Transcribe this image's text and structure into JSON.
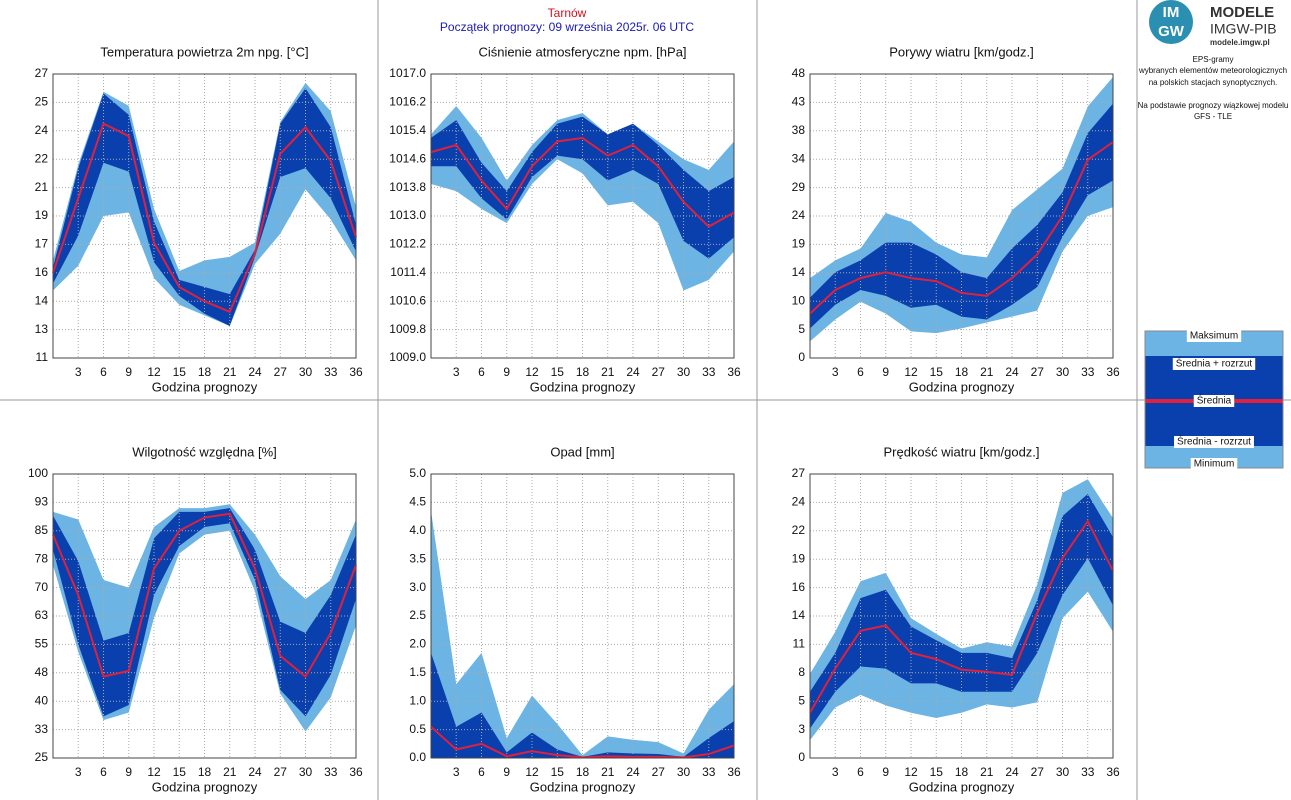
{
  "header": {
    "title": "Tarnów",
    "subtitle": "Początek prognozy: 09 września 2025r. 06 UTC"
  },
  "sidebar": {
    "logo_top": "IM",
    "logo_bottom": "GW",
    "brand": "MODELE",
    "org": "IMGW-PIB",
    "url": "modele.imgw.pl",
    "description": [
      "EPS-gramy",
      "wybranych elementów meteorologicznych",
      "na polskich stacjach  synoptycznych.",
      "Na podstawie prognozy wiązkowej modelu",
      "GFS - TLE"
    ]
  },
  "legend": [
    {
      "name": "Maksimum",
      "color": "#6cb4e4"
    },
    {
      "name": "Średnia + rozrzut",
      "color": "#0a3fae"
    },
    {
      "name": "Średnia",
      "color": "#e0203c"
    },
    {
      "name": "Średnia - rozrzut",
      "color": "#0a3fae"
    },
    {
      "name": "Minimum",
      "color": "#6cb4e4"
    }
  ],
  "chart_data": [
    {
      "type": "band",
      "title": "Temperatura powietrza 2m npg. [°C]",
      "xlabel": "Godzina prognozy",
      "x": [
        0,
        3,
        6,
        9,
        12,
        15,
        18,
        21,
        24,
        27,
        30,
        33,
        36
      ],
      "xlim": [
        0,
        36
      ],
      "xticks": [
        3,
        6,
        9,
        12,
        15,
        18,
        21,
        24,
        27,
        30,
        33,
        36
      ],
      "ylim": [
        11,
        27
      ],
      "yticks": [
        11,
        {
          "value": 12.6,
          "label": "13"
        },
        {
          "value": 14.2,
          "label": "14"
        },
        {
          "value": 15.8,
          "label": "16"
        },
        {
          "value": 17.4,
          "label": "17"
        },
        19,
        {
          "value": 20.6,
          "label": "21"
        },
        {
          "value": 22.2,
          "label": "22"
        },
        {
          "value": 23.8,
          "label": "24"
        },
        {
          "value": 25.4,
          "label": "25"
        },
        27
      ],
      "grid": true,
      "series": [
        {
          "values": [
            16.5,
            21.9,
            26.0,
            25.2,
            19.4,
            15.9,
            16.5,
            16.7,
            17.5,
            24.3,
            26.5,
            24.9,
            19.5
          ]
        },
        {
          "values": [
            16.1,
            21.7,
            25.9,
            24.7,
            18.7,
            15.4,
            15.0,
            14.6,
            17.1,
            24.2,
            26.2,
            24.0,
            18.5
          ]
        },
        {
          "values": [
            15.8,
            20.0,
            24.2,
            23.5,
            17.5,
            15.0,
            14.2,
            13.6,
            16.9,
            22.5,
            24.0,
            22.1,
            17.8
          ]
        },
        {
          "values": [
            15.2,
            17.9,
            22.0,
            21.5,
            16.4,
            14.5,
            13.5,
            12.8,
            16.7,
            21.2,
            21.7,
            20.0,
            17.0
          ]
        },
        {
          "values": [
            14.8,
            16.2,
            19.0,
            19.2,
            15.5,
            14.0,
            13.4,
            12.8,
            16.3,
            18.0,
            20.5,
            18.8,
            16.5
          ]
        }
      ]
    },
    {
      "type": "band",
      "title": "Ciśnienie atmosferyczne npm. [hPa]",
      "xlabel": "Godzina prognozy",
      "x": [
        0,
        3,
        6,
        9,
        12,
        15,
        18,
        21,
        24,
        27,
        30,
        33,
        36
      ],
      "xlim": [
        0,
        36
      ],
      "xticks": [
        3,
        6,
        9,
        12,
        15,
        18,
        21,
        24,
        27,
        30,
        33,
        36
      ],
      "ylim": [
        1009,
        1017
      ],
      "yticks": [
        {
          "value": 1009,
          "label": "1009.0"
        },
        1009.8,
        1010.6,
        1011.4,
        1012.2,
        {
          "value": 1013,
          "label": "1013.0"
        },
        1013.8,
        1014.6,
        1015.4,
        1016.2,
        {
          "value": 1017,
          "label": "1017.0"
        }
      ],
      "grid": true,
      "series": [
        {
          "values": [
            1015.3,
            1016.1,
            1015.2,
            1014.0,
            1015.0,
            1015.7,
            1015.9,
            1015.3,
            1015.6,
            1015.1,
            1014.6,
            1014.3,
            1015.1
          ]
        },
        {
          "values": [
            1015.2,
            1015.7,
            1014.5,
            1013.7,
            1014.8,
            1015.6,
            1015.8,
            1015.3,
            1015.6,
            1015.0,
            1014.3,
            1013.7,
            1014.1
          ]
        },
        {
          "values": [
            1014.8,
            1015.0,
            1014.0,
            1013.2,
            1014.4,
            1015.1,
            1015.2,
            1014.7,
            1015.0,
            1014.4,
            1013.4,
            1012.7,
            1013.1
          ]
        },
        {
          "values": [
            1014.4,
            1014.4,
            1013.5,
            1012.9,
            1014.1,
            1014.7,
            1014.6,
            1014.0,
            1014.3,
            1013.9,
            1012.3,
            1011.8,
            1012.4
          ]
        },
        {
          "values": [
            1013.9,
            1013.7,
            1013.2,
            1012.8,
            1013.9,
            1014.6,
            1014.2,
            1013.3,
            1013.4,
            1012.8,
            1010.9,
            1011.2,
            1012.0
          ]
        }
      ]
    },
    {
      "type": "band",
      "title": "Porywy wiatru [km/godz.]",
      "xlabel": "Godzina prognozy",
      "x": [
        0,
        3,
        6,
        9,
        12,
        15,
        18,
        21,
        24,
        27,
        30,
        33,
        36
      ],
      "xlim": [
        0,
        36
      ],
      "xticks": [
        3,
        6,
        9,
        12,
        15,
        18,
        21,
        24,
        27,
        30,
        33,
        36
      ],
      "ylim": [
        0,
        48
      ],
      "yticks": [
        0,
        {
          "value": 4.8,
          "label": "5"
        },
        {
          "value": 9.6,
          "label": "10"
        },
        {
          "value": 14.4,
          "label": "14"
        },
        {
          "value": 19.2,
          "label": "19"
        },
        24,
        {
          "value": 28.8,
          "label": "29"
        },
        {
          "value": 33.6,
          "label": "34"
        },
        {
          "value": 38.4,
          "label": "38"
        },
        {
          "value": 43.2,
          "label": "43"
        },
        48
      ],
      "grid": true,
      "series": [
        {
          "values": [
            13.5,
            16.5,
            18.5,
            24.5,
            23.0,
            19.5,
            17.5,
            17.0,
            25.0,
            28.5,
            32.0,
            42.5,
            47.5
          ]
        },
        {
          "values": [
            10.2,
            14.5,
            16.5,
            19.5,
            19.5,
            17.5,
            14.5,
            13.5,
            18.5,
            22.5,
            28.0,
            38.0,
            43.0
          ]
        },
        {
          "values": [
            7.5,
            11.5,
            13.5,
            14.5,
            13.5,
            13.0,
            11.0,
            10.5,
            13.5,
            17.5,
            24.0,
            33.5,
            36.5
          ]
        },
        {
          "values": [
            5.0,
            9.0,
            11.5,
            10.5,
            8.5,
            9.0,
            7.0,
            6.5,
            9.0,
            12.0,
            20.5,
            27.5,
            30.0
          ]
        },
        {
          "values": [
            2.8,
            6.5,
            9.5,
            7.5,
            4.5,
            4.2,
            5.0,
            6.0,
            7.0,
            8.0,
            18.0,
            24.0,
            25.5
          ]
        }
      ]
    },
    {
      "type": "band",
      "title": "Wilgotność względna [%]",
      "xlabel": "Godzina prognozy",
      "x": [
        0,
        3,
        6,
        9,
        12,
        15,
        18,
        21,
        24,
        27,
        30,
        33,
        36
      ],
      "xlim": [
        0,
        36
      ],
      "xticks": [
        3,
        6,
        9,
        12,
        15,
        18,
        21,
        24,
        27,
        30,
        33,
        36
      ],
      "ylim": [
        25,
        100
      ],
      "yticks": [
        25,
        {
          "value": 32.5,
          "label": "33"
        },
        40,
        {
          "value": 47.5,
          "label": "48"
        },
        55,
        {
          "value": 62.5,
          "label": "63"
        },
        70,
        {
          "value": 77.5,
          "label": "78"
        },
        85,
        {
          "value": 92.5,
          "label": "93"
        },
        100
      ],
      "grid": true,
      "series": [
        {
          "values": [
            90,
            88,
            72,
            70,
            86,
            91,
            91,
            92,
            84,
            73,
            67,
            72,
            88
          ]
        },
        {
          "values": [
            89,
            77,
            56,
            58,
            83,
            90,
            90,
            91,
            80,
            61,
            58,
            68,
            84
          ]
        },
        {
          "values": [
            84,
            68,
            46.5,
            48,
            75,
            85,
            88.5,
            89.5,
            75,
            52,
            46.5,
            58,
            76
          ]
        },
        {
          "values": [
            80,
            55,
            36,
            39,
            68,
            81,
            86,
            87,
            72,
            43,
            36,
            47,
            67
          ]
        },
        {
          "values": [
            76,
            53,
            35,
            37,
            62,
            79,
            84,
            85,
            69,
            42,
            32,
            41,
            60
          ]
        }
      ]
    },
    {
      "type": "band",
      "title": "Opad [mm]",
      "xlabel": "Godzina prognozy",
      "x": [
        0,
        3,
        6,
        9,
        12,
        15,
        18,
        21,
        24,
        27,
        30,
        33,
        36
      ],
      "xlim": [
        0,
        36
      ],
      "xticks": [
        3,
        6,
        9,
        12,
        15,
        18,
        21,
        24,
        27,
        30,
        33,
        36
      ],
      "ylim": [
        0,
        5
      ],
      "yticks": [
        {
          "value": 0,
          "label": "0.0"
        },
        0.5,
        {
          "value": 1,
          "label": "1.0"
        },
        1.5,
        {
          "value": 2,
          "label": "2.0"
        },
        2.5,
        {
          "value": 3,
          "label": "3.0"
        },
        3.5,
        {
          "value": 4,
          "label": "4.0"
        },
        4.5,
        {
          "value": 5,
          "label": "5.0"
        }
      ],
      "grid": true,
      "series": [
        {
          "values": [
            4.35,
            1.3,
            1.85,
            0.35,
            1.1,
            0.6,
            0.05,
            0.38,
            0.32,
            0.28,
            0.08,
            0.85,
            1.3
          ]
        },
        {
          "values": [
            1.85,
            0.55,
            0.8,
            0.1,
            0.45,
            0.15,
            0.02,
            0.1,
            0.08,
            0.07,
            0.02,
            0.35,
            0.65
          ]
        },
        {
          "values": [
            0.55,
            0.15,
            0.25,
            0.03,
            0.12,
            0.05,
            0.01,
            0.03,
            0.02,
            0.02,
            0.01,
            0.07,
            0.22
          ]
        },
        {
          "values": [
            0,
            0,
            0,
            0,
            0,
            0,
            0,
            0,
            0,
            0,
            0,
            0,
            0
          ]
        },
        {
          "values": [
            0,
            0,
            0,
            0,
            0,
            0,
            0,
            0,
            0,
            0,
            0,
            0,
            0
          ]
        }
      ]
    },
    {
      "type": "band",
      "title": "Prędkość wiatru [km/godz.]",
      "xlabel": "Godzina prognozy",
      "x": [
        0,
        3,
        6,
        9,
        12,
        15,
        18,
        21,
        24,
        27,
        30,
        33,
        36
      ],
      "xlim": [
        0,
        36
      ],
      "xticks": [
        3,
        6,
        9,
        12,
        15,
        18,
        21,
        24,
        27,
        30,
        33,
        36
      ],
      "ylim": [
        0,
        27
      ],
      "yticks": [
        0,
        {
          "value": 2.7,
          "label": "3"
        },
        {
          "value": 5.4,
          "label": "5"
        },
        {
          "value": 8.1,
          "label": "8"
        },
        {
          "value": 10.8,
          "label": "11"
        },
        {
          "value": 13.5,
          "label": "14"
        },
        {
          "value": 16.2,
          "label": "16"
        },
        {
          "value": 18.9,
          "label": "19"
        },
        {
          "value": 21.6,
          "label": "22"
        },
        {
          "value": 24.3,
          "label": "24"
        },
        27
      ],
      "grid": true,
      "series": [
        {
          "values": [
            8.0,
            12.0,
            16.8,
            17.6,
            13.3,
            11.8,
            10.4,
            11.0,
            10.6,
            16.5,
            25.2,
            26.5,
            22.8
          ]
        },
        {
          "values": [
            6.3,
            10.0,
            15.2,
            16.0,
            12.5,
            11.2,
            10.0,
            10.0,
            9.5,
            15.0,
            23.0,
            25.1,
            21.0
          ]
        },
        {
          "values": [
            4.3,
            8.5,
            12.1,
            12.6,
            10.0,
            9.4,
            8.4,
            8.2,
            7.9,
            13.8,
            19.0,
            22.5,
            17.8
          ]
        },
        {
          "values": [
            2.8,
            6.3,
            8.7,
            8.5,
            7.1,
            7.1,
            6.3,
            6.3,
            6.3,
            10.0,
            15.5,
            19.0,
            14.5
          ]
        },
        {
          "values": [
            1.7,
            4.8,
            6.0,
            5.0,
            4.3,
            3.8,
            4.3,
            5.1,
            4.8,
            5.3,
            13.3,
            15.8,
            12.0
          ]
        }
      ]
    }
  ]
}
